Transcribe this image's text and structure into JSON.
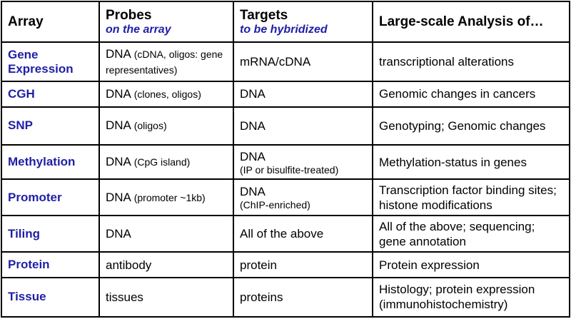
{
  "header": {
    "array": "Array",
    "probes": "Probes",
    "probes_sub": "on the array",
    "targets": "Targets",
    "targets_sub": "to be hybridized",
    "analysis": "Large-scale Analysis of…"
  },
  "rows": [
    {
      "array": "Gene Expression",
      "probe": "DNA",
      "probe_note": "(cDNA, oligos: gene representatives)",
      "target": "mRNA/cDNA",
      "target_note": "",
      "analysis": "transcriptional alterations"
    },
    {
      "array": "CGH",
      "probe": "DNA",
      "probe_note": "(clones, oligos)",
      "target": "DNA",
      "target_note": "",
      "analysis": "Genomic changes in cancers"
    },
    {
      "array": "SNP",
      "probe": "DNA",
      "probe_note": "(oligos)",
      "target": "DNA",
      "target_note": "",
      "analysis": "Genotyping; Genomic changes"
    },
    {
      "array": "Methylation",
      "probe": "DNA",
      "probe_note": "(CpG island)",
      "target": "DNA",
      "target_note": "(IP or bisulfite-treated)",
      "analysis": "Methylation-status in genes"
    },
    {
      "array": "Promoter",
      "probe": "DNA",
      "probe_note": "(promoter ~1kb)",
      "target": "DNA",
      "target_note": "(ChIP-enriched)",
      "analysis": "Transcription factor binding sites; histone modifications"
    },
    {
      "array": "Tiling",
      "probe": "DNA",
      "probe_note": "",
      "target": "All of the above",
      "target_note": "",
      "analysis": "All of the above; sequencing; gene annotation"
    },
    {
      "array": "Protein",
      "probe": "antibody",
      "probe_note": "",
      "target": "protein",
      "target_note": "",
      "analysis": "Protein expression"
    },
    {
      "array": "Tissue",
      "probe": "tissues",
      "probe_note": "",
      "target": "proteins",
      "target_note": "",
      "analysis": "Histology; protein expression (immunohistochemistry)"
    }
  ],
  "colors": {
    "accent_blue": "#1f1fa6",
    "border": "#000000",
    "text": "#000000"
  }
}
